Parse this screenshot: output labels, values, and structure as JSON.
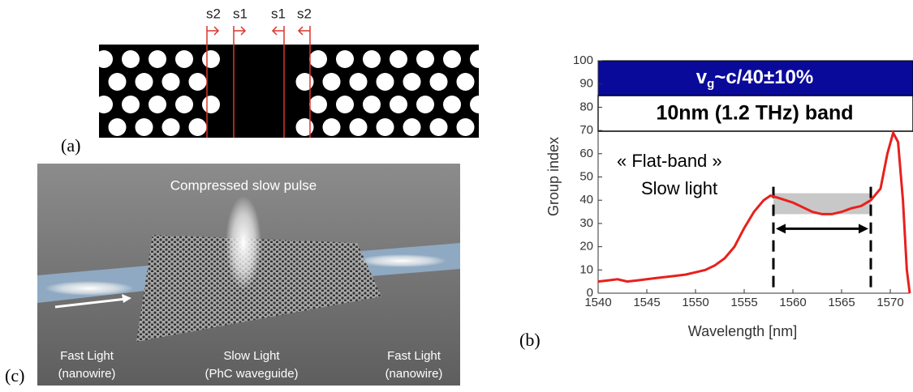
{
  "panels": {
    "a": {
      "label": "(a)",
      "markers": [
        "s2",
        "s1",
        "s1",
        "s2"
      ]
    },
    "b": {
      "label": "(b)"
    },
    "c": {
      "label": "(c)",
      "title": "Compressed slow pulse",
      "captions": [
        [
          "Fast Light",
          "(nanowire)"
        ],
        [
          "Slow Light",
          "(PhC waveguide)"
        ],
        [
          "Fast Light",
          "(nanowire)"
        ]
      ]
    }
  },
  "chart_data": {
    "type": "line",
    "x_label": "Wavelength [nm]",
    "y_label": "Group index",
    "x": [
      1540,
      1541,
      1542,
      1543,
      1544,
      1545,
      1546,
      1547,
      1548,
      1549,
      1550,
      1551,
      1552,
      1553,
      1554,
      1555,
      1556,
      1557,
      1557.7,
      1558.5,
      1560,
      1561,
      1562,
      1563,
      1564,
      1565,
      1566,
      1567,
      1568,
      1569,
      1569.7,
      1570.3,
      1570.8,
      1571.3,
      1571.7,
      1572
    ],
    "values": [
      5,
      5.5,
      6,
      5,
      5.5,
      6,
      6.5,
      7,
      7.5,
      8,
      9,
      10,
      12,
      15,
      20,
      28,
      35,
      40,
      42,
      41,
      39,
      37,
      35,
      34,
      34,
      35,
      36.5,
      37.5,
      40,
      45,
      60,
      69,
      65,
      40,
      10,
      0
    ],
    "color": "#e8201c",
    "xlim": [
      1540,
      1572
    ],
    "ylim": [
      0,
      100
    ],
    "xticks": [
      1540,
      1545,
      1550,
      1555,
      1560,
      1565,
      1570
    ],
    "yticks": [
      0,
      10,
      20,
      30,
      40,
      50,
      60,
      70,
      80,
      90,
      100
    ],
    "banner": [
      "v",
      "g",
      "~c/40±10%"
    ],
    "band_text": "10nm (1.2 THz) band",
    "notes": [
      "« Flat-band »",
      "Slow light"
    ],
    "highlight": {
      "x": [
        1558,
        1568
      ],
      "y": [
        34,
        43
      ]
    }
  }
}
